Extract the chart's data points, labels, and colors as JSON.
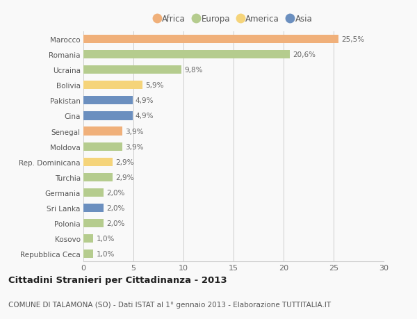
{
  "categories": [
    "Repubblica Ceca",
    "Kosovo",
    "Polonia",
    "Sri Lanka",
    "Germania",
    "Turchia",
    "Rep. Dominicana",
    "Moldova",
    "Senegal",
    "Cina",
    "Pakistan",
    "Bolivia",
    "Ucraina",
    "Romania",
    "Marocco"
  ],
  "values": [
    1.0,
    1.0,
    2.0,
    2.0,
    2.0,
    2.9,
    2.9,
    3.9,
    3.9,
    4.9,
    4.9,
    5.9,
    9.8,
    20.6,
    25.5
  ],
  "labels": [
    "1,0%",
    "1,0%",
    "2,0%",
    "2,0%",
    "2,0%",
    "2,9%",
    "2,9%",
    "3,9%",
    "3,9%",
    "4,9%",
    "4,9%",
    "5,9%",
    "9,8%",
    "20,6%",
    "25,5%"
  ],
  "colors": [
    "#b5cc8e",
    "#b5cc8e",
    "#b5cc8e",
    "#6b8fbf",
    "#b5cc8e",
    "#b5cc8e",
    "#f5d47a",
    "#b5cc8e",
    "#f0b07a",
    "#6b8fbf",
    "#6b8fbf",
    "#f5d47a",
    "#b5cc8e",
    "#b5cc8e",
    "#f0b07a"
  ],
  "legend_labels": [
    "Africa",
    "Europa",
    "America",
    "Asia"
  ],
  "legend_colors": [
    "#f0b07a",
    "#b5cc8e",
    "#f5d47a",
    "#6b8fbf"
  ],
  "xlim": [
    0,
    30
  ],
  "xticks": [
    0,
    5,
    10,
    15,
    20,
    25,
    30
  ],
  "title": "Cittadini Stranieri per Cittadinanza - 2013",
  "subtitle": "COMUNE DI TALAMONA (SO) - Dati ISTAT al 1° gennaio 2013 - Elaborazione TUTTITALIA.IT",
  "background_color": "#f9f9f9",
  "bar_height": 0.55,
  "grid_color": "#cccccc",
  "label_fontsize": 7.5,
  "ytick_fontsize": 7.5,
  "xtick_fontsize": 8.0,
  "title_fontsize": 9.5,
  "subtitle_fontsize": 7.5
}
